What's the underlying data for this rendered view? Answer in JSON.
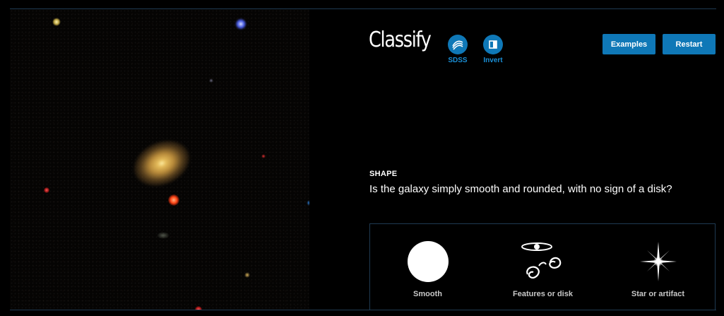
{
  "header": {
    "title": "Classify",
    "tools": [
      {
        "label": "SDSS",
        "icon": "sdss-icon"
      },
      {
        "label": "Invert",
        "icon": "invert-icon"
      }
    ],
    "examples_label": "Examples",
    "restart_label": "Restart"
  },
  "task": {
    "label": "SHAPE",
    "question": "Is the galaxy simply smooth and rounded, with no sign of a disk?",
    "answers": [
      {
        "label": "Smooth",
        "icon": "smooth-icon"
      },
      {
        "label": "Features or disk",
        "icon": "features-or-disk-icon"
      },
      {
        "label": "Star or artifact",
        "icon": "star-or-artifact-icon"
      }
    ]
  },
  "colors": {
    "accent": "#0f78b7",
    "link_text": "#1a8fd6",
    "background": "#000000",
    "divider": "#1f3a52",
    "answer_text": "#c8c8c8"
  }
}
